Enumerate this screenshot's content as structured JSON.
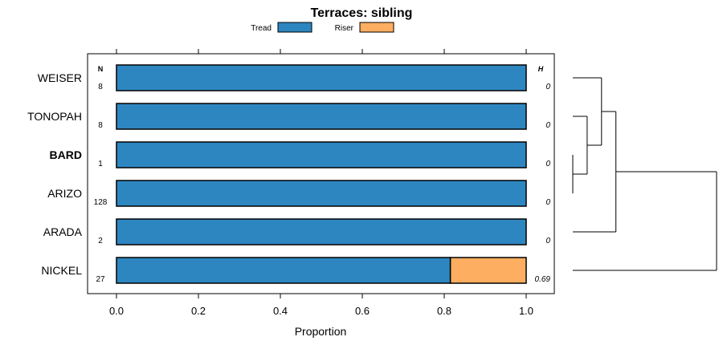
{
  "chart_data": {
    "type": "bar",
    "title": "Terraces: sibling",
    "xlabel": "Proportion",
    "ylabel": "",
    "xlim": [
      -0.07,
      1.07
    ],
    "xticks": [
      0.0,
      0.2,
      0.4,
      0.6,
      0.8,
      1.0
    ],
    "xtick_labels": [
      "0.0",
      "0.2",
      "0.4",
      "0.6",
      "0.8",
      "1.0"
    ],
    "stacked": true,
    "horizontal": true,
    "legend": {
      "placement": "top",
      "entries": [
        {
          "label": "Tread",
          "color": "#2e86c1"
        },
        {
          "label": "Riser",
          "color": "#fdae61"
        }
      ]
    },
    "n_header": "N",
    "h_header": "H",
    "categories": [
      "WEISER",
      "TONOPAH",
      "BARD",
      "ARIZO",
      "ARADA",
      "NICKEL"
    ],
    "bold_categories": [
      "BARD"
    ],
    "n": [
      "8",
      "8",
      "1",
      "128",
      "2",
      "27"
    ],
    "h": [
      "0",
      "0",
      "0",
      "0",
      "0",
      "0.69"
    ],
    "series": [
      {
        "name": "Tread",
        "values": [
          1.0,
          1.0,
          1.0,
          1.0,
          1.0,
          0.815
        ],
        "color": "#2e86c1"
      },
      {
        "name": "Riser",
        "values": [
          0.0,
          0.0,
          0.0,
          0.0,
          0.0,
          0.185
        ],
        "color": "#fdae61"
      }
    ],
    "dendrogram": {
      "leaves": [
        "WEISER",
        "TONOPAH",
        "BARD",
        "ARIZO",
        "ARADA",
        "NICKEL"
      ],
      "merges": [
        {
          "a": "BARD",
          "b": "ARIZO",
          "height": 0.0
        },
        {
          "a": "TONOPAH",
          "b": "m0",
          "height": 0.1
        },
        {
          "a": "WEISER",
          "b": "m1",
          "height": 0.2
        },
        {
          "a": "m2",
          "b": "ARADA",
          "height": 0.3
        },
        {
          "a": "m3",
          "b": "NICKEL",
          "height": 1.0
        }
      ]
    }
  }
}
